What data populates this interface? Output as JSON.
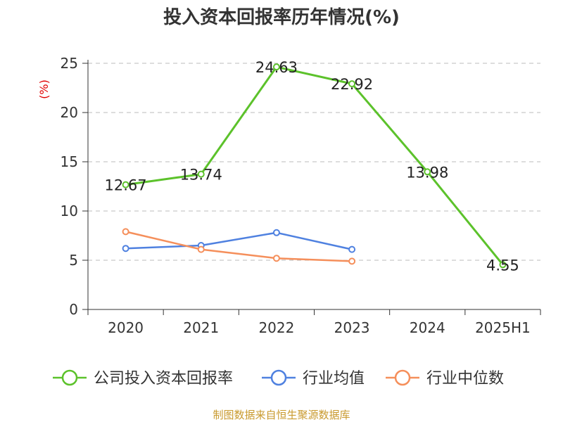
{
  "chart_data": {
    "type": "line",
    "title": "投入资本回报率历年情况(%)",
    "ylabel": "(%)",
    "categories": [
      "2020",
      "2021",
      "2022",
      "2023",
      "2024",
      "2025H1"
    ],
    "ylim": [
      0,
      25
    ],
    "yticks": [
      0,
      5,
      10,
      15,
      20,
      25
    ],
    "grid": true,
    "legend_position": "bottom",
    "series": [
      {
        "name": "公司投入资本回报率",
        "color": "#5cc22b",
        "values": [
          12.67,
          13.74,
          24.63,
          22.92,
          13.98,
          4.55
        ],
        "labels": [
          "12.67",
          "13.74",
          "24.63",
          "22.92",
          "13.98",
          "4.55"
        ]
      },
      {
        "name": "行业均值",
        "color": "#4f81e0",
        "values": [
          6.2,
          6.5,
          7.8,
          6.1,
          null,
          null
        ]
      },
      {
        "name": "行业中位数",
        "color": "#f58f5b",
        "values": [
          7.9,
          6.1,
          5.2,
          4.9,
          null,
          null
        ]
      }
    ],
    "source": "制图数据来自恒生聚源数据库"
  }
}
